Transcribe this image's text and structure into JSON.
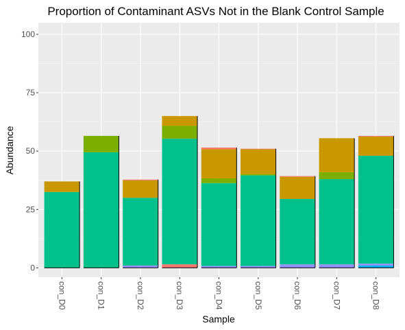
{
  "chart_data": {
    "type": "bar",
    "stacked": true,
    "title": "Proportion of Contaminant ASVs Not in the Blank Control Sample",
    "xlabel": "Sample",
    "ylabel": "Abundance",
    "ylim": [
      -4,
      105
    ],
    "yticks": [
      0,
      25,
      50,
      75,
      100
    ],
    "grid": true,
    "legend": "none",
    "categories": [
      "con_D0",
      "con_D1",
      "con_D2",
      "con_D3",
      "con_D4",
      "con_D5",
      "con_D6",
      "con_D7",
      "con_D8"
    ],
    "series": [
      {
        "color": "#00B0F6",
        "values": [
          0,
          0,
          0,
          0,
          0,
          0,
          0,
          0,
          1.0
        ]
      },
      {
        "color": "#9590FF",
        "values": [
          0,
          0,
          1.0,
          0,
          0.8,
          0.8,
          1.5,
          1.5,
          0.8
        ]
      },
      {
        "color": "#F8766D",
        "values": [
          0,
          0,
          0,
          1.5,
          0,
          0,
          0,
          0,
          0
        ]
      },
      {
        "color": "#00C08B",
        "values": [
          32.5,
          49.5,
          29.0,
          53.8,
          35.5,
          38.8,
          28.0,
          36.5,
          46.2
        ]
      },
      {
        "color": "#7CAE00",
        "values": [
          0,
          7.0,
          0,
          5.5,
          2.0,
          0.5,
          0,
          3.0,
          0
        ]
      },
      {
        "color": "#C99800",
        "values": [
          4.5,
          0,
          7.5,
          4.2,
          12.5,
          10.7,
          9.5,
          14.5,
          8.2
        ]
      },
      {
        "color": "#F8766D",
        "values": [
          0,
          0,
          0.3,
          0,
          0.7,
          0.2,
          0.3,
          0,
          0.3
        ]
      }
    ]
  }
}
